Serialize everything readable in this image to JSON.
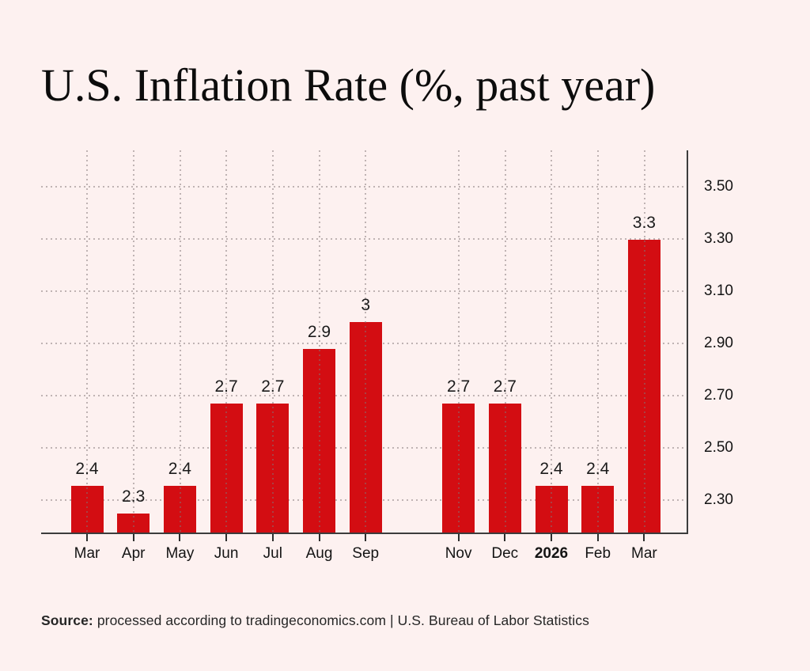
{
  "page": {
    "background_color": "#fdf1f0",
    "title": "U.S. Inflation Rate (%, past year)"
  },
  "footer": {
    "source_label": "Source:",
    "source_text": "processed according to tradingeconomics.com | U.S. Bureau of Labor Statistics"
  },
  "chart_data": {
    "type": "bar",
    "title": "U.S. Inflation Rate (%, past year)",
    "categories": [
      "Mar",
      "Apr",
      "May",
      "Jun",
      "Jul",
      "Aug",
      "Sep",
      null,
      "Nov",
      "Dec",
      "2026",
      "Feb",
      "Mar"
    ],
    "values": [
      2.4,
      2.3,
      2.4,
      2.7,
      2.7,
      2.9,
      3,
      null,
      2.7,
      2.7,
      2.4,
      2.4,
      3.3
    ],
    "bar_value_labels": [
      "2.4",
      "2.3",
      "2.4",
      "2.7",
      "2.7",
      "2.9",
      "3",
      null,
      "2.7",
      "2.7",
      "2.4",
      "2.4",
      "3.3"
    ],
    "bold_category_labels": [
      "2026"
    ],
    "xlabel": "",
    "ylabel": "",
    "y_axis": {
      "side": "right",
      "tick_labels": [
        "3.50",
        "3.30",
        "3.10",
        "2.90",
        "2.70",
        "2.50",
        "2.30"
      ],
      "tick_values": [
        3.5,
        3.3,
        3.1,
        2.9,
        2.7,
        2.5,
        2.3
      ],
      "ylim": [
        2.17,
        3.64
      ]
    },
    "grid": {
      "style": "dotted",
      "horizontal": true,
      "vertical": true
    },
    "legend_position": "none",
    "bar_color": "#d30d12",
    "text_color": "#141414"
  }
}
